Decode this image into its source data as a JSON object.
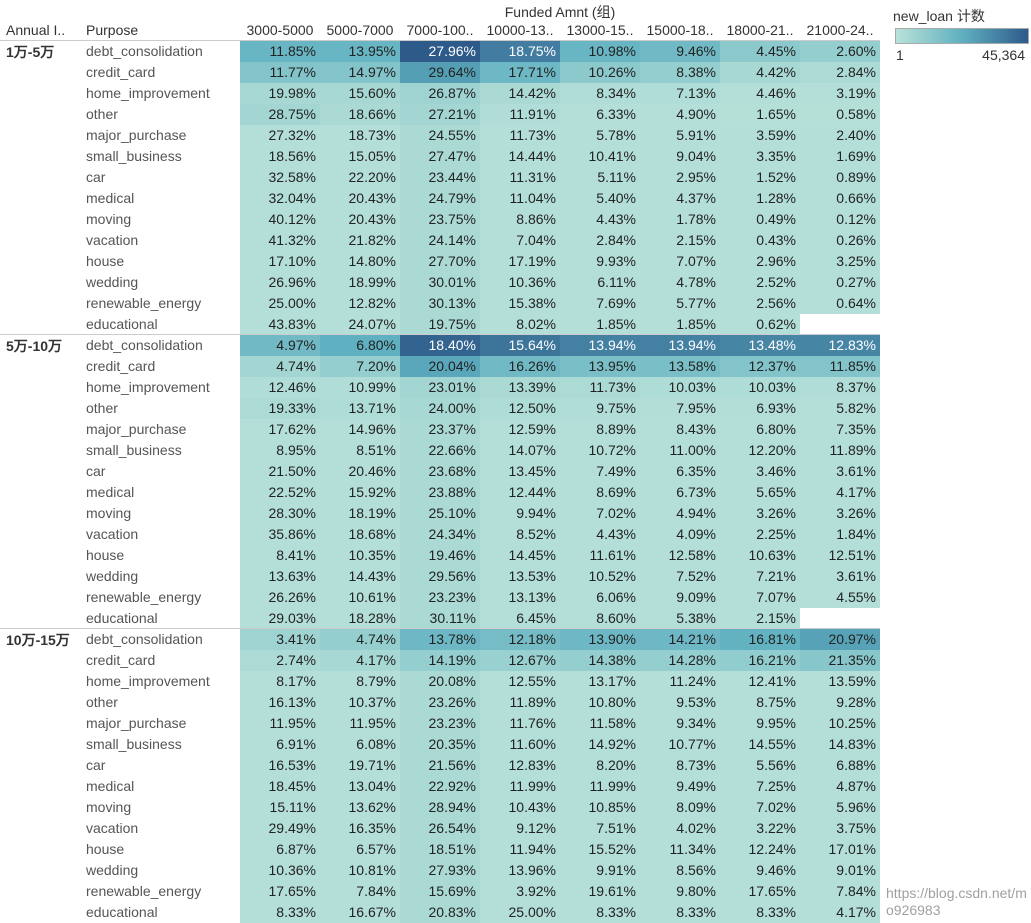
{
  "chart_data": {
    "type": "heatmap",
    "title": "Funded Amnt (组)",
    "row_headers": [
      "Annual I..",
      "Purpose"
    ],
    "columns": [
      "3000-5000",
      "5000-7000",
      "7000-100..",
      "10000-13..",
      "13000-15..",
      "15000-18..",
      "18000-21..",
      "21000-24.."
    ],
    "legend": {
      "title": "new_loan 计数",
      "min": "1",
      "max": "45,364",
      "colors": [
        "#b9e2d9",
        "#5fb0c0",
        "#2e5a8a"
      ],
      "placement": "top-right"
    },
    "groups": [
      {
        "name": "1万-5万",
        "rows": [
          {
            "purpose": "debt_consolidation",
            "values": [
              "11.85%",
              "13.95%",
              "27.96%",
              "18.75%",
              "10.98%",
              "9.46%",
              "4.45%",
              "2.60%"
            ],
            "shade": [
              0.45,
              0.45,
              1,
              0.8,
              0.45,
              0.4,
              0.25,
              0.2
            ]
          },
          {
            "purpose": "credit_card",
            "values": [
              "11.77%",
              "14.97%",
              "29.64%",
              "17.71%",
              "10.26%",
              "8.38%",
              "4.42%",
              "2.84%"
            ],
            "shade": [
              0.3,
              0.3,
              0.6,
              0.42,
              0.25,
              0.2,
              0.1,
              0.07
            ]
          },
          {
            "purpose": "home_improvement",
            "values": [
              "19.98%",
              "15.60%",
              "26.87%",
              "14.42%",
              "8.34%",
              "7.13%",
              "4.46%",
              "3.19%"
            ],
            "shade": [
              0.1,
              0.1,
              0.15,
              0.08,
              0.05,
              0.05,
              0.03,
              0.03
            ]
          },
          {
            "purpose": "other",
            "values": [
              "28.75%",
              "18.66%",
              "27.21%",
              "11.91%",
              "6.33%",
              "4.90%",
              "1.65%",
              "0.58%"
            ],
            "shade": [
              0.12,
              0.08,
              0.12,
              0.05,
              0.03,
              0.03,
              0.02,
              0.02
            ]
          },
          {
            "purpose": "major_purchase",
            "values": [
              "27.32%",
              "18.73%",
              "24.55%",
              "11.73%",
              "5.78%",
              "5.91%",
              "3.59%",
              "2.40%"
            ]
          },
          {
            "purpose": "small_business",
            "values": [
              "18.56%",
              "15.05%",
              "27.47%",
              "14.44%",
              "10.41%",
              "9.04%",
              "3.35%",
              "1.69%"
            ]
          },
          {
            "purpose": "car",
            "values": [
              "32.58%",
              "22.20%",
              "23.44%",
              "11.31%",
              "5.11%",
              "2.95%",
              "1.52%",
              "0.89%"
            ]
          },
          {
            "purpose": "medical",
            "values": [
              "32.04%",
              "20.43%",
              "24.79%",
              "11.04%",
              "5.40%",
              "4.37%",
              "1.28%",
              "0.66%"
            ]
          },
          {
            "purpose": "moving",
            "values": [
              "40.12%",
              "20.43%",
              "23.75%",
              "8.86%",
              "4.43%",
              "1.78%",
              "0.49%",
              "0.12%"
            ]
          },
          {
            "purpose": "vacation",
            "values": [
              "41.32%",
              "21.82%",
              "24.14%",
              "7.04%",
              "2.84%",
              "2.15%",
              "0.43%",
              "0.26%"
            ]
          },
          {
            "purpose": "house",
            "values": [
              "17.10%",
              "14.80%",
              "27.70%",
              "17.19%",
              "9.93%",
              "7.07%",
              "2.96%",
              "3.25%"
            ]
          },
          {
            "purpose": "wedding",
            "values": [
              "26.96%",
              "18.99%",
              "30.01%",
              "10.36%",
              "6.11%",
              "4.78%",
              "2.52%",
              "0.27%"
            ]
          },
          {
            "purpose": "renewable_energy",
            "values": [
              "25.00%",
              "12.82%",
              "30.13%",
              "15.38%",
              "7.69%",
              "5.77%",
              "2.56%",
              "0.64%"
            ]
          },
          {
            "purpose": "educational",
            "values": [
              "43.83%",
              "24.07%",
              "19.75%",
              "8.02%",
              "1.85%",
              "1.85%",
              "0.62%",
              null
            ]
          }
        ]
      },
      {
        "name": "5万-10万",
        "rows": [
          {
            "purpose": "debt_consolidation",
            "values": [
              "4.97%",
              "6.80%",
              "18.40%",
              "15.64%",
              "13.94%",
              "13.94%",
              "13.48%",
              "12.83%"
            ],
            "shade": [
              0.4,
              0.5,
              0.95,
              0.85,
              0.78,
              0.78,
              0.75,
              0.75
            ]
          },
          {
            "purpose": "credit_card",
            "values": [
              "4.74%",
              "7.20%",
              "20.04%",
              "16.26%",
              "13.95%",
              "13.58%",
              "12.37%",
              "11.85%"
            ],
            "shade": [
              0.12,
              0.2,
              0.55,
              0.4,
              0.35,
              0.35,
              0.3,
              0.3
            ]
          },
          {
            "purpose": "home_improvement",
            "values": [
              "12.46%",
              "10.99%",
              "23.01%",
              "13.39%",
              "11.73%",
              "10.03%",
              "10.03%",
              "8.37%"
            ],
            "shade": [
              0.05,
              0.05,
              0.12,
              0.08,
              0.07,
              0.06,
              0.06,
              0.05
            ]
          },
          {
            "purpose": "other",
            "values": [
              "19.33%",
              "13.71%",
              "24.00%",
              "12.50%",
              "9.75%",
              "7.95%",
              "6.93%",
              "5.82%"
            ],
            "shade": [
              0.07,
              0.06,
              0.1,
              0.06,
              0.05,
              0.04,
              0.04,
              0.03
            ]
          },
          {
            "purpose": "major_purchase",
            "values": [
              "17.62%",
              "14.96%",
              "23.37%",
              "12.59%",
              "8.89%",
              "8.43%",
              "6.80%",
              "7.35%"
            ]
          },
          {
            "purpose": "small_business",
            "values": [
              "8.95%",
              "8.51%",
              "22.66%",
              "14.07%",
              "10.72%",
              "11.00%",
              "12.20%",
              "11.89%"
            ]
          },
          {
            "purpose": "car",
            "values": [
              "21.50%",
              "20.46%",
              "23.68%",
              "13.45%",
              "7.49%",
              "6.35%",
              "3.46%",
              "3.61%"
            ]
          },
          {
            "purpose": "medical",
            "values": [
              "22.52%",
              "15.92%",
              "23.88%",
              "12.44%",
              "8.69%",
              "6.73%",
              "5.65%",
              "4.17%"
            ]
          },
          {
            "purpose": "moving",
            "values": [
              "28.30%",
              "18.19%",
              "25.10%",
              "9.94%",
              "7.02%",
              "4.94%",
              "3.26%",
              "3.26%"
            ]
          },
          {
            "purpose": "vacation",
            "values": [
              "35.86%",
              "18.68%",
              "24.34%",
              "8.52%",
              "4.43%",
              "4.09%",
              "2.25%",
              "1.84%"
            ]
          },
          {
            "purpose": "house",
            "values": [
              "8.41%",
              "10.35%",
              "19.46%",
              "14.45%",
              "11.61%",
              "12.58%",
              "10.63%",
              "12.51%"
            ]
          },
          {
            "purpose": "wedding",
            "values": [
              "13.63%",
              "14.43%",
              "29.56%",
              "13.53%",
              "10.52%",
              "7.52%",
              "7.21%",
              "3.61%"
            ]
          },
          {
            "purpose": "renewable_energy",
            "values": [
              "26.26%",
              "10.61%",
              "23.23%",
              "13.13%",
              "6.06%",
              "9.09%",
              "7.07%",
              "4.55%"
            ]
          },
          {
            "purpose": "educational",
            "values": [
              "29.03%",
              "18.28%",
              "30.11%",
              "6.45%",
              "8.60%",
              "5.38%",
              "2.15%",
              null
            ]
          }
        ]
      },
      {
        "name": "10万-15万",
        "rows": [
          {
            "purpose": "debt_consolidation",
            "values": [
              "3.41%",
              "4.74%",
              "13.78%",
              "12.18%",
              "13.90%",
              "14.21%",
              "16.81%",
              "20.97%"
            ],
            "shade": [
              0.15,
              0.2,
              0.42,
              0.38,
              0.42,
              0.42,
              0.48,
              0.58
            ]
          },
          {
            "purpose": "credit_card",
            "values": [
              "2.74%",
              "4.17%",
              "14.19%",
              "12.67%",
              "14.38%",
              "14.28%",
              "16.21%",
              "21.35%"
            ],
            "shade": [
              0.07,
              0.1,
              0.2,
              0.18,
              0.2,
              0.2,
              0.22,
              0.28
            ]
          },
          {
            "purpose": "home_improvement",
            "values": [
              "8.17%",
              "8.79%",
              "20.08%",
              "12.55%",
              "13.17%",
              "11.24%",
              "12.41%",
              "13.59%"
            ]
          },
          {
            "purpose": "other",
            "values": [
              "16.13%",
              "10.37%",
              "23.26%",
              "11.89%",
              "10.80%",
              "9.53%",
              "8.75%",
              "9.28%"
            ]
          },
          {
            "purpose": "major_purchase",
            "values": [
              "11.95%",
              "11.95%",
              "23.23%",
              "11.76%",
              "11.58%",
              "9.34%",
              "9.95%",
              "10.25%"
            ]
          },
          {
            "purpose": "small_business",
            "values": [
              "6.91%",
              "6.08%",
              "20.35%",
              "11.60%",
              "14.92%",
              "10.77%",
              "14.55%",
              "14.83%"
            ]
          },
          {
            "purpose": "car",
            "values": [
              "16.53%",
              "19.71%",
              "21.56%",
              "12.83%",
              "8.20%",
              "8.73%",
              "5.56%",
              "6.88%"
            ]
          },
          {
            "purpose": "medical",
            "values": [
              "18.45%",
              "13.04%",
              "22.92%",
              "11.99%",
              "11.99%",
              "9.49%",
              "7.25%",
              "4.87%"
            ]
          },
          {
            "purpose": "moving",
            "values": [
              "15.11%",
              "13.62%",
              "28.94%",
              "10.43%",
              "10.85%",
              "8.09%",
              "7.02%",
              "5.96%"
            ]
          },
          {
            "purpose": "vacation",
            "values": [
              "29.49%",
              "16.35%",
              "26.54%",
              "9.12%",
              "7.51%",
              "4.02%",
              "3.22%",
              "3.75%"
            ]
          },
          {
            "purpose": "house",
            "values": [
              "6.87%",
              "6.57%",
              "18.51%",
              "11.94%",
              "15.52%",
              "11.34%",
              "12.24%",
              "17.01%"
            ]
          },
          {
            "purpose": "wedding",
            "values": [
              "10.36%",
              "10.81%",
              "27.93%",
              "13.96%",
              "9.91%",
              "8.56%",
              "9.46%",
              "9.01%"
            ]
          },
          {
            "purpose": "renewable_energy",
            "values": [
              "17.65%",
              "7.84%",
              "15.69%",
              "3.92%",
              "19.61%",
              "9.80%",
              "17.65%",
              "7.84%"
            ]
          },
          {
            "purpose": "educational",
            "values": [
              "8.33%",
              "16.67%",
              "20.83%",
              "25.00%",
              "8.33%",
              "8.33%",
              "8.33%",
              "4.17%"
            ]
          }
        ]
      }
    ]
  },
  "watermark": "https://blog.csdn.net/mo926983"
}
